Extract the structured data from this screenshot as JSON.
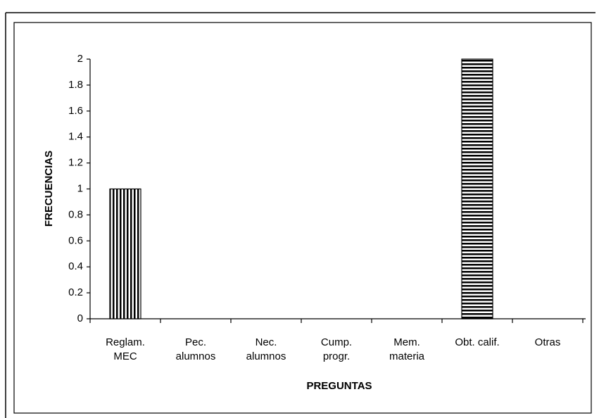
{
  "chart_data": {
    "type": "bar",
    "xlabel": "PREGUNTAS",
    "ylabel": "FRECUENCIAS",
    "categories": [
      [
        "Reglam.",
        "MEC"
      ],
      [
        "Pec.",
        "alumnos"
      ],
      [
        "Nec.",
        "alumnos"
      ],
      [
        "Cump.",
        "progr."
      ],
      [
        "Mem.",
        "materia"
      ],
      [
        "Obt. calif."
      ],
      [
        "Otras"
      ]
    ],
    "values": [
      1,
      0,
      0,
      0,
      0,
      2,
      0
    ],
    "patterns": [
      "vertical",
      "vertical",
      "vertical",
      "vertical",
      "vertical",
      "horizontal",
      "vertical"
    ],
    "color": "#000000",
    "ylim": [
      0,
      2
    ],
    "yticks": [
      0,
      0.2,
      0.4,
      0.6,
      0.8,
      1,
      1.2,
      1.4,
      1.6,
      1.8,
      2
    ]
  }
}
